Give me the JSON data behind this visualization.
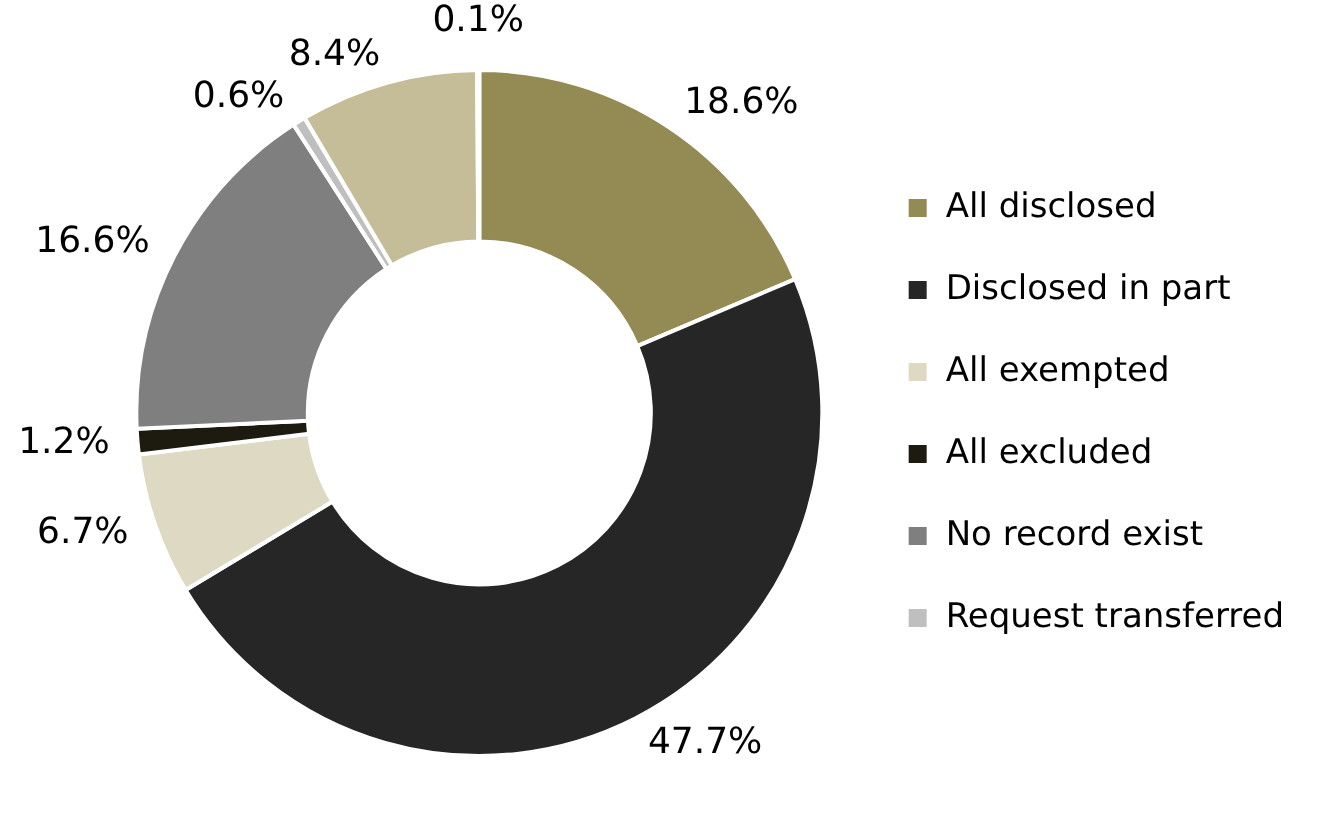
{
  "chart_data": {
    "type": "donut",
    "categories": [
      "All disclosed",
      "Disclosed in part",
      "All exempted",
      "All excluded",
      "No record exist",
      "Request transferred",
      null,
      null
    ],
    "values": [
      18.6,
      47.7,
      6.7,
      1.2,
      16.6,
      0.6,
      8.4,
      0.1
    ],
    "value_labels": [
      "18.6%",
      "47.7%",
      "6.7%",
      "1.2%",
      "16.6%",
      "0.6%",
      "8.4%",
      "0.1%"
    ],
    "colors": [
      "#948a54",
      "#262626",
      "#ddd9c3",
      "#1d1b10",
      "#7f7f7f",
      "#bfbfbf",
      "#c4bd97",
      "#eeece1"
    ],
    "legend": "right"
  }
}
